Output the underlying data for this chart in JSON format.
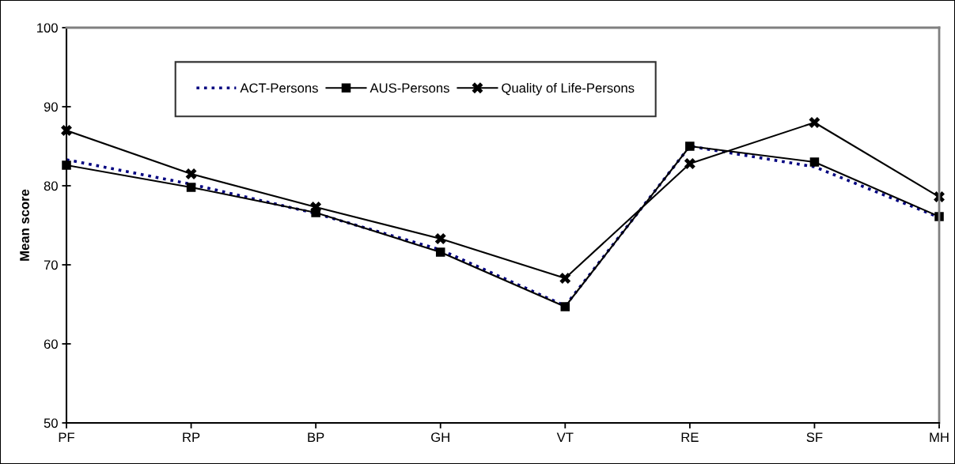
{
  "chart_data": {
    "type": "line",
    "ylabel": "Mean score",
    "categories": [
      "PF",
      "RP",
      "BP",
      "GH",
      "VT",
      "RE",
      "SF",
      "MH"
    ],
    "series": [
      {
        "name": "ACT-Persons",
        "color": "#000080",
        "line_style": "dotted",
        "marker": "none",
        "values": [
          83.3,
          80.2,
          76.5,
          71.9,
          64.8,
          85.0,
          82.4,
          76.0
        ]
      },
      {
        "name": "AUS-Persons",
        "color": "#000000",
        "line_style": "solid",
        "marker": "square",
        "values": [
          82.6,
          79.8,
          76.6,
          71.6,
          64.7,
          85.0,
          83.0,
          76.1
        ]
      },
      {
        "name": "Quality of Life-Persons",
        "color": "#000000",
        "line_style": "solid",
        "marker": "cross",
        "values": [
          87.0,
          81.5,
          77.3,
          73.3,
          68.3,
          82.8,
          88.0,
          78.6
        ]
      }
    ],
    "ylim": [
      50,
      100
    ],
    "yticks": [
      50,
      60,
      70,
      80,
      90,
      100
    ],
    "grid": false,
    "legend": "top"
  }
}
